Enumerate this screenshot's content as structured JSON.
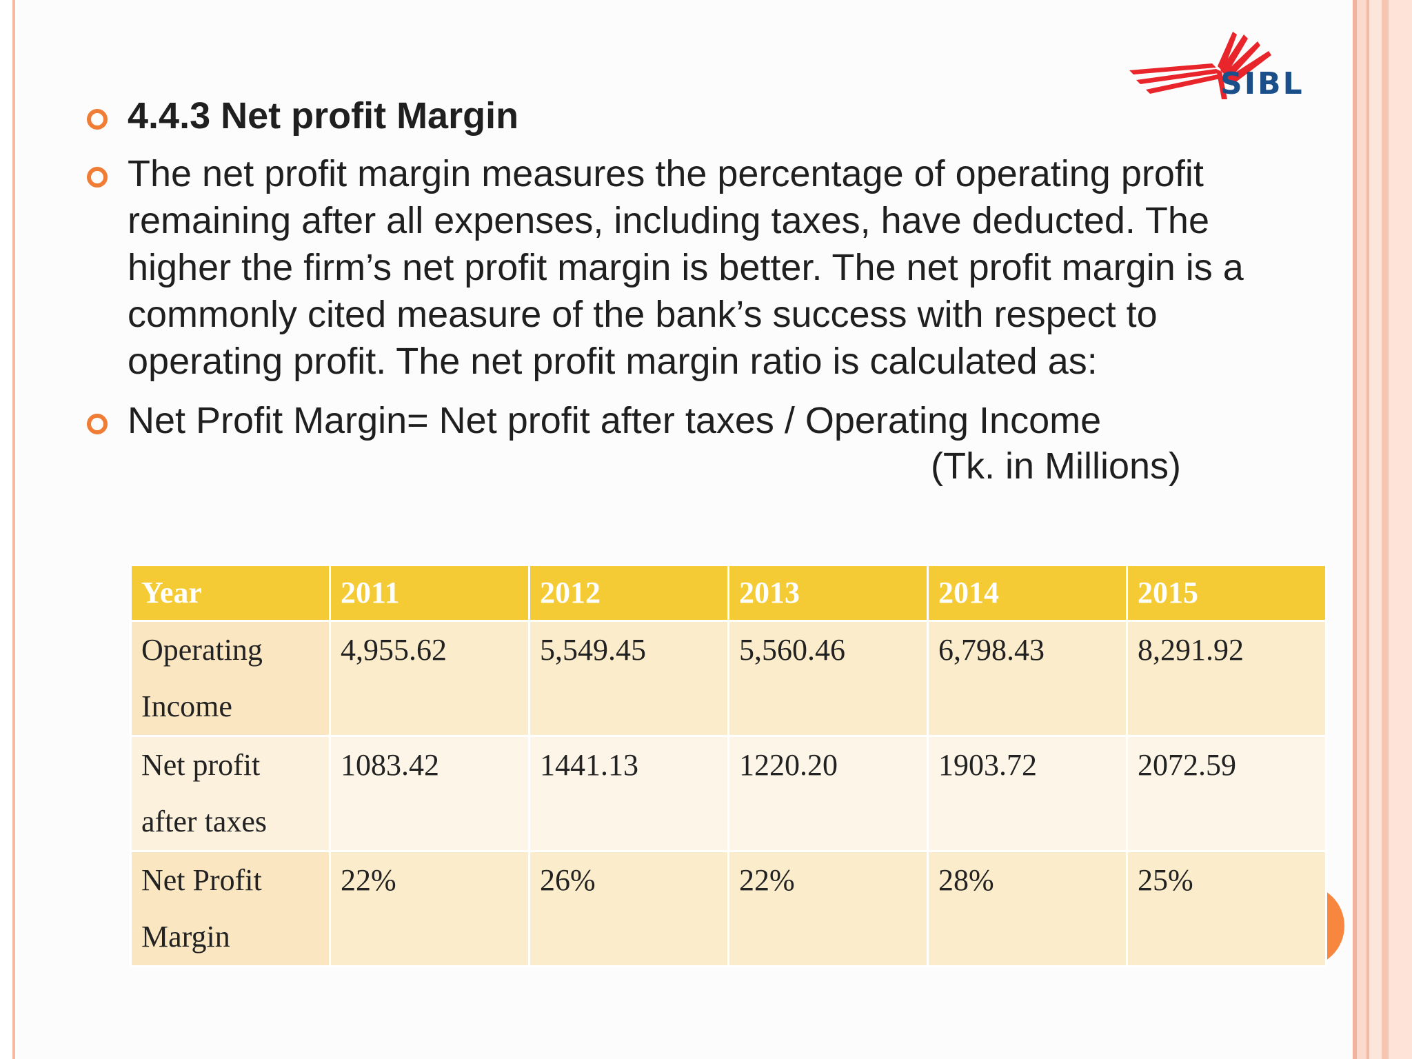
{
  "logo": {
    "text": "SIBL",
    "colors": {
      "swoosh": "#e8252a",
      "text": "#1b4f8a"
    }
  },
  "bullets": [
    {
      "text": "4.4.3 Net profit Margin",
      "style": "bold"
    },
    {
      "text": "The net profit margin measures the percentage of operating profit remaining after all expenses, including taxes, have deducted. The higher the firm’s net profit margin is better. The net profit margin is a commonly cited measure of the bank’s success with respect to operating profit. The net profit margin ratio is calculated as:"
    },
    {
      "text": "Net Profit Margin= Net profit after taxes / Operating Income"
    }
  ],
  "units": "(Tk. in Millions)",
  "table": {
    "headers": [
      "Year",
      "2011",
      "2012",
      "2013",
      "2014",
      "2015"
    ],
    "rows": [
      {
        "label": [
          "Operating",
          "Income"
        ],
        "values": [
          "4,955.62",
          "5,549.45",
          "5,560.46",
          "6,798.43",
          "8,291.92"
        ]
      },
      {
        "label": [
          "Net profit",
          "after taxes"
        ],
        "values": [
          "1083.42",
          "1441.13",
          "1220.20",
          "1903.72",
          "2072.59"
        ]
      },
      {
        "label": [
          "Net Profit",
          "Margin"
        ],
        "values": [
          "22%",
          "26%",
          "22%",
          "28%",
          "25%"
        ]
      }
    ]
  },
  "theme": {
    "accent": "#f07d35",
    "header_fill": "#f4cb34"
  }
}
